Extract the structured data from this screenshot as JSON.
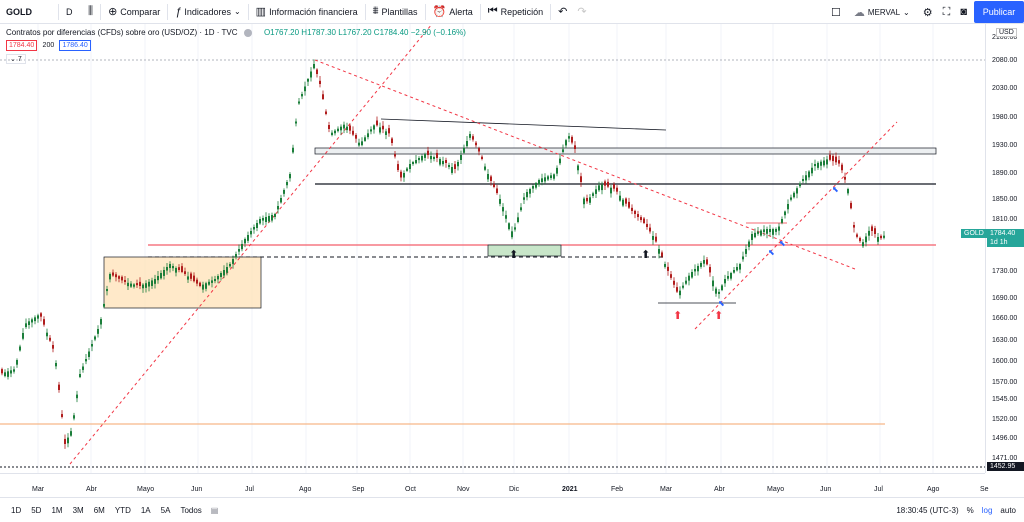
{
  "toolbar": {
    "symbol": "GOLD",
    "interval": "D",
    "compare": "Comparar",
    "indicators": "Indicadores",
    "financial_info": "Información financiera",
    "templates": "Plantillas",
    "alert": "Alerta",
    "replay": "Repetición",
    "merval": "MERVAL",
    "publish": "Publicar"
  },
  "legend": {
    "title": "Contratos por diferencias (CFDs) sobre oro (USD/OZ) · 1D · TVC",
    "ohlc": "O1767.20  H1787.30  L1767.20  C1784.40  −2.90 (−0.16%)",
    "bid": "1784.40",
    "spread": "200",
    "ask": "1786.40",
    "indicator_count": "7"
  },
  "price_scale": {
    "currency": "USD",
    "ticks": [
      "2100.00",
      "2080.00",
      "2030.00",
      "1980.00",
      "1930.00",
      "1890.00",
      "1850.00",
      "1810.00",
      "1770.00",
      "1730.00",
      "1690.00",
      "1660.00",
      "1630.00",
      "1600.00",
      "1570.00",
      "1545.00",
      "1520.00",
      "1496.00",
      "1471.00",
      "1452.95"
    ],
    "last_price_symbol": "GOLD",
    "last_price": "1784.40",
    "countdown": "1d 1h",
    "low_marker": "1452.95"
  },
  "time_scale": {
    "ticks": [
      "Mar",
      "Abr",
      "Mayo",
      "Jun",
      "Jul",
      "Ago",
      "Sep",
      "Oct",
      "Nov",
      "Dic",
      "2021",
      "Feb",
      "Mar",
      "Abr",
      "Mayo",
      "Jun",
      "Jul",
      "Ago",
      "Se"
    ]
  },
  "bottom_bar": {
    "ranges": [
      "1D",
      "5D",
      "1M",
      "3M",
      "6M",
      "YTD",
      "1A",
      "5A",
      "Todos"
    ],
    "clock": "18:30:45 (UTC-3)",
    "percent": "%",
    "log": "log",
    "auto": "auto"
  },
  "colors": {
    "up": "#26a69a",
    "down": "#ef5350",
    "accent": "#2962ff",
    "candle_up": "#1b7e3a",
    "candle_down": "#b01d1d"
  }
}
